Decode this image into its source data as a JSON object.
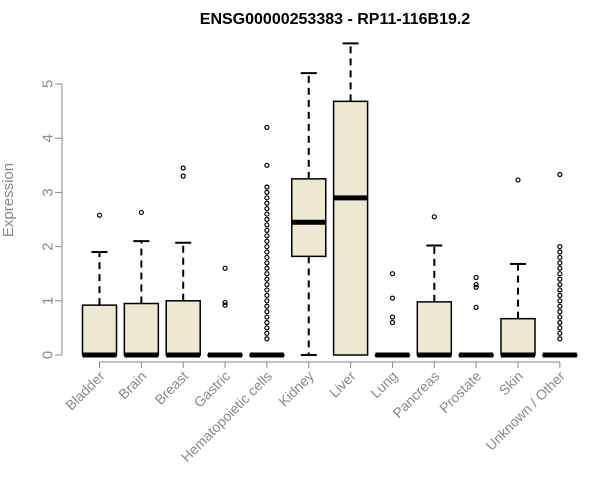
{
  "chart_data": {
    "type": "boxplot",
    "title": "ENSG00000253383 - RP11-116B19.2",
    "xlabel": "",
    "ylabel": "Expression",
    "ylim": [
      0,
      5.75
    ],
    "yticks": [
      0,
      1,
      2,
      3,
      4,
      5
    ],
    "grid": false,
    "box_fill": "#EEE8D1",
    "categories": [
      "Bladder",
      "Brain",
      "Breast",
      "Gastric",
      "Hematopoietic cells",
      "Kidney",
      "Liver",
      "Lung",
      "Pancreas",
      "Prostate",
      "Skin",
      "Unknown / Other"
    ],
    "boxes": [
      {
        "q1": 0,
        "median": 0,
        "q3": 0.92,
        "whisker_low": 0,
        "whisker_high": 1.9,
        "outliers": [
          2.58
        ]
      },
      {
        "q1": 0,
        "median": 0,
        "q3": 0.95,
        "whisker_low": 0,
        "whisker_high": 2.1,
        "outliers": [
          2.63
        ]
      },
      {
        "q1": 0,
        "median": 0,
        "q3": 1.0,
        "whisker_low": 0,
        "whisker_high": 2.07,
        "outliers": [
          3.3,
          3.45
        ]
      },
      {
        "q1": 0,
        "median": 0,
        "q3": 0,
        "whisker_low": 0,
        "whisker_high": 0,
        "outliers": [
          0.92,
          0.97,
          1.6
        ]
      },
      {
        "q1": 0,
        "median": 0,
        "q3": 0,
        "whisker_low": 0,
        "whisker_high": 0,
        "outliers": [
          0.3,
          0.4,
          0.5,
          0.6,
          0.7,
          0.8,
          0.9,
          1.0,
          1.1,
          1.2,
          1.3,
          1.4,
          1.5,
          1.6,
          1.7,
          1.8,
          1.9,
          2.0,
          2.1,
          2.2,
          2.3,
          2.4,
          2.5,
          2.6,
          2.7,
          2.8,
          2.9,
          3.0,
          3.1,
          3.5,
          4.2
        ]
      },
      {
        "q1": 1.82,
        "median": 2.45,
        "q3": 3.25,
        "whisker_low": 0,
        "whisker_high": 5.2,
        "outliers": []
      },
      {
        "q1": 0,
        "median": 2.9,
        "q3": 4.68,
        "whisker_low": 0,
        "whisker_high": 5.75,
        "outliers": []
      },
      {
        "q1": 0,
        "median": 0,
        "q3": 0,
        "whisker_low": 0,
        "whisker_high": 0,
        "outliers": [
          0.6,
          0.7,
          1.05,
          1.5
        ]
      },
      {
        "q1": 0,
        "median": 0,
        "q3": 0.98,
        "whisker_low": 0,
        "whisker_high": 2.02,
        "outliers": [
          2.55
        ]
      },
      {
        "q1": 0,
        "median": 0,
        "q3": 0,
        "whisker_low": 0,
        "whisker_high": 0,
        "outliers": [
          0.88,
          1.25,
          1.3,
          1.43
        ]
      },
      {
        "q1": 0,
        "median": 0,
        "q3": 0.67,
        "whisker_low": 0,
        "whisker_high": 1.68,
        "outliers": [
          3.23
        ]
      },
      {
        "q1": 0,
        "median": 0,
        "q3": 0,
        "whisker_low": 0,
        "whisker_high": 0,
        "outliers": [
          0.3,
          0.4,
          0.5,
          0.6,
          0.7,
          0.8,
          0.9,
          1.0,
          1.1,
          1.2,
          1.3,
          1.4,
          1.5,
          1.6,
          1.7,
          1.8,
          1.9,
          2.0,
          3.33
        ]
      }
    ]
  }
}
